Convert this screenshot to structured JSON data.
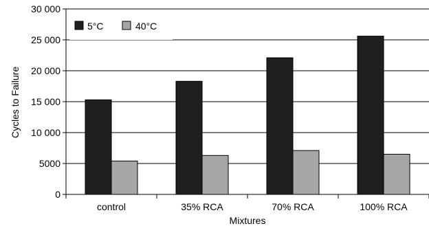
{
  "chart_data": {
    "type": "bar",
    "categories": [
      "control",
      "35% RCA",
      "70% RCA",
      "100% RCA"
    ],
    "series": [
      {
        "name": "5°C",
        "values": [
          15300,
          18300,
          22100,
          25600
        ],
        "color": "#1f1f1f"
      },
      {
        "name": "40°C",
        "values": [
          5400,
          6300,
          7100,
          6500
        ],
        "color": "#a6a6a6"
      }
    ],
    "title": "",
    "xlabel": "Mixtures",
    "ylabel": "Cycles to Failure",
    "ylim": [
      0,
      30000
    ],
    "yticks": [
      0,
      5000,
      10000,
      15000,
      20000,
      25000,
      30000
    ],
    "ytick_labels": [
      "0",
      "5000",
      "10 000",
      "15 000",
      "20 000",
      "25 000",
      "30 000"
    ],
    "grid": true,
    "legend_position": "top-left"
  }
}
